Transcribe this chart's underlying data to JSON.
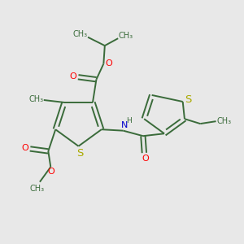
{
  "background_color": "#e8e8e8",
  "bond_color": "#3a6b3a",
  "sulfur_color": "#aaaa00",
  "oxygen_color": "#ff0000",
  "nitrogen_color": "#0000cc",
  "text_color": "#3a6b3a",
  "figsize": [
    3.0,
    3.0
  ],
  "dpi": 100,
  "xlim": [
    0,
    10
  ],
  "ylim": [
    0,
    10
  ]
}
